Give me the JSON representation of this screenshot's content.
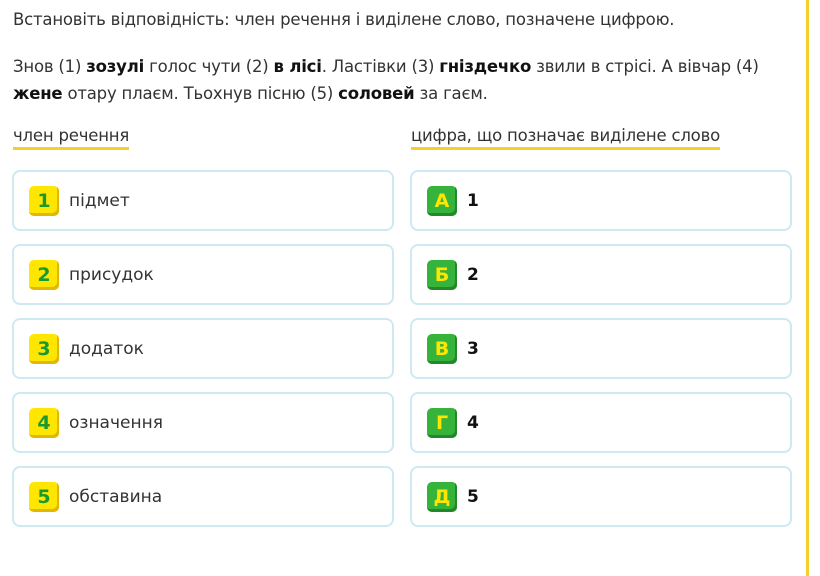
{
  "instruction": "Встановіть відповідність: член речення і виділене слово, позначене цифрою.",
  "text_parts": [
    {
      "t": "Знов (1) ",
      "b": false
    },
    {
      "t": "зозулі",
      "b": true
    },
    {
      "t": " голос чути (2) ",
      "b": false
    },
    {
      "t": "в лісі",
      "b": true
    },
    {
      "t": ". Ластівки (3) ",
      "b": false
    },
    {
      "t": "гніздечко",
      "b": true
    },
    {
      "t": " звили в стрісі. А вівчар (4) ",
      "b": false
    },
    {
      "t": "жене",
      "b": true
    },
    {
      "t": " отару плаєм. Тьохнув пісню (5) ",
      "b": false
    },
    {
      "t": "соловей",
      "b": true
    },
    {
      "t": " за гаєм.",
      "b": false
    }
  ],
  "left_header": "член речення",
  "right_header": "цифра, що позначає виділене слово",
  "left_items": [
    {
      "badge": "1",
      "label": "підмет"
    },
    {
      "badge": "2",
      "label": "присудок"
    },
    {
      "badge": "3",
      "label": "додаток"
    },
    {
      "badge": "4",
      "label": "означення"
    },
    {
      "badge": "5",
      "label": "обставина"
    }
  ],
  "right_items": [
    {
      "badge": "А",
      "label": "1"
    },
    {
      "badge": "Б",
      "label": "2"
    },
    {
      "badge": "В",
      "label": "3"
    },
    {
      "badge": "Г",
      "label": "4"
    },
    {
      "badge": "Д",
      "label": "5"
    }
  ],
  "colors": {
    "accent_yellow": "#f5cf2a",
    "badge_yellow": "#ffe600",
    "badge_green": "#36b33a",
    "card_border": "#cde9f2"
  }
}
